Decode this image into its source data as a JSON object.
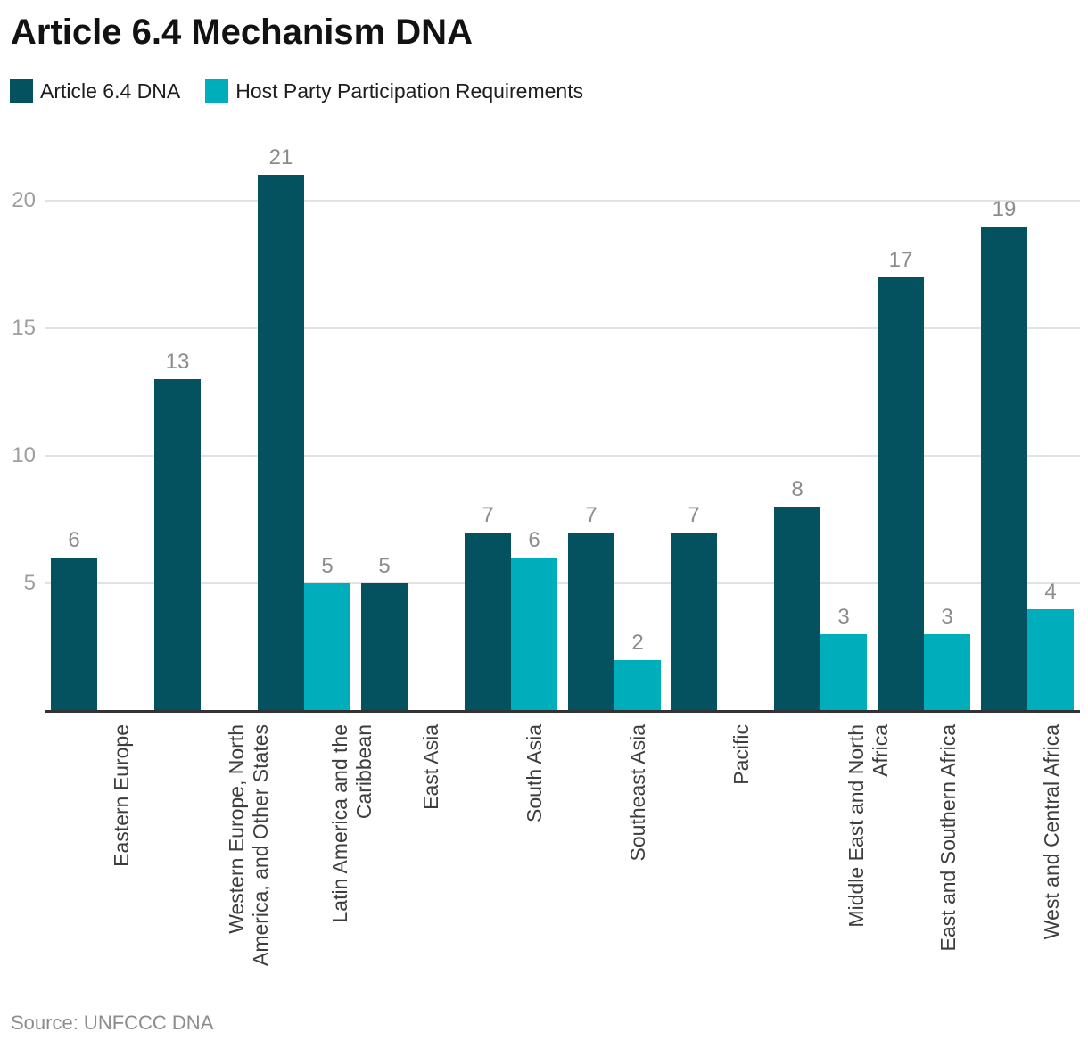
{
  "title": "Article 6.4 Mechanism DNA",
  "legend": [
    {
      "label": "Article 6.4 DNA",
      "color": "#04525f"
    },
    {
      "label": "Host Party Participation Requirements",
      "color": "#00adbb"
    }
  ],
  "source": "Source: UNFCCC DNA",
  "colors": {
    "series_dark": "#04525f",
    "series_cyan": "#00adbb",
    "gridline": "#e2e2e2",
    "axis": "#333333",
    "value_label": "#8c8c8c",
    "y_tick": "#9e9e9e",
    "x_label": "#3d3d3d"
  },
  "chart_data": {
    "type": "bar",
    "title": "Article 6.4 Mechanism DNA",
    "categories": [
      [
        "Eastern Europe"
      ],
      [
        "Western Europe, North",
        "America, and Other States"
      ],
      [
        "Latin America and the",
        "Caribbean"
      ],
      [
        "East Asia"
      ],
      [
        "South Asia"
      ],
      [
        "Southeast Asia"
      ],
      [
        "Pacific"
      ],
      [
        "Middle East and North",
        "Africa"
      ],
      [
        "East and Southern Africa"
      ],
      [
        "West and Central Africa"
      ]
    ],
    "series": [
      {
        "name": "Article 6.4 DNA",
        "color": "#04525f",
        "values": [
          6,
          13,
          21,
          5,
          7,
          7,
          7,
          8,
          17,
          19
        ]
      },
      {
        "name": "Host Party Participation Requirements",
        "color": "#00adbb",
        "values": [
          null,
          null,
          5,
          null,
          6,
          2,
          null,
          3,
          3,
          4
        ]
      }
    ],
    "yticks": [
      5,
      10,
      15,
      20
    ],
    "ylim": [
      0,
      22
    ],
    "grid": true,
    "value_labels": true,
    "legend_position": "top",
    "xlabel": "",
    "ylabel": ""
  }
}
